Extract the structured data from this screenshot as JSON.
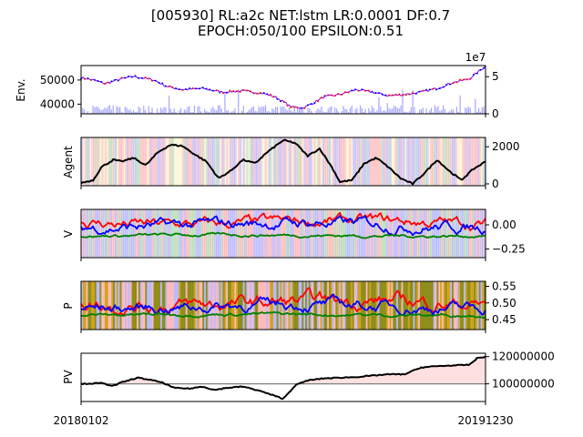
{
  "title": {
    "line1": "[005930] RL:a2c NET:lstm LR:0.0001 DF:0.7",
    "line2": "EPOCH:050/100 EPSILON:0.51"
  },
  "chart_data": [
    {
      "type": "line",
      "panel": "env",
      "ylabel": "Env.",
      "x_range": [
        "20180102",
        "20191230"
      ],
      "left_ticks": [
        "40000",
        "50000"
      ],
      "right_ticks": [
        "0",
        "5"
      ],
      "right_offset_label": "1e7",
      "ylim": [
        36000,
        56000
      ],
      "ylim_volume": [
        0,
        65000000
      ],
      "series": [
        {
          "name": "",
          "color": "#8000ff",
          "desc": "close price",
          "keyframes": [
            [
              0,
              51000
            ],
            [
              0.03,
              50000
            ],
            [
              0.06,
              48500
            ],
            [
              0.1,
              50500
            ],
            [
              0.13,
              51500
            ],
            [
              0.18,
              50000
            ],
            [
              0.21,
              47500
            ],
            [
              0.25,
              46000
            ],
            [
              0.3,
              46500
            ],
            [
              0.35,
              45000
            ],
            [
              0.4,
              45500
            ],
            [
              0.45,
              44500
            ],
            [
              0.48,
              43000
            ],
            [
              0.5,
              41000
            ],
            [
              0.52,
              38800
            ],
            [
              0.55,
              38500
            ],
            [
              0.58,
              41000
            ],
            [
              0.6,
              43000
            ],
            [
              0.64,
              44000
            ],
            [
              0.68,
              46000
            ],
            [
              0.72,
              45000
            ],
            [
              0.76,
              43500
            ],
            [
              0.8,
              44000
            ],
            [
              0.84,
              45000
            ],
            [
              0.88,
              46500
            ],
            [
              0.92,
              49000
            ],
            [
              0.96,
              50500
            ],
            [
              1.0,
              55800
            ]
          ]
        },
        {
          "name": "",
          "color": "#0000ff",
          "desc": "volume bars",
          "scale": 1
        }
      ]
    },
    {
      "type": "line",
      "panel": "agent",
      "ylabel": "Agent",
      "right_ticks": [
        "0",
        "2000"
      ],
      "ylim": [
        -100,
        2500
      ],
      "series": [
        {
          "name": "",
          "color": "#000000",
          "keyframes": [
            [
              0,
              50
            ],
            [
              0.03,
              200
            ],
            [
              0.05,
              900
            ],
            [
              0.08,
              1300
            ],
            [
              0.1,
              1200
            ],
            [
              0.13,
              1400
            ],
            [
              0.16,
              1000
            ],
            [
              0.19,
              1700
            ],
            [
              0.22,
              2100
            ],
            [
              0.25,
              2050
            ],
            [
              0.28,
              1600
            ],
            [
              0.31,
              1200
            ],
            [
              0.34,
              300
            ],
            [
              0.37,
              700
            ],
            [
              0.4,
              1300
            ],
            [
              0.43,
              1100
            ],
            [
              0.46,
              1700
            ],
            [
              0.5,
              2350
            ],
            [
              0.53,
              2200
            ],
            [
              0.56,
              1500
            ],
            [
              0.59,
              1900
            ],
            [
              0.62,
              900
            ],
            [
              0.64,
              100
            ],
            [
              0.67,
              200
            ],
            [
              0.7,
              1100
            ],
            [
              0.73,
              1400
            ],
            [
              0.76,
              900
            ],
            [
              0.79,
              300
            ],
            [
              0.82,
              0
            ],
            [
              0.85,
              600
            ],
            [
              0.88,
              1300
            ],
            [
              0.91,
              700
            ],
            [
              0.94,
              200
            ],
            [
              0.97,
              800
            ],
            [
              1.0,
              1200
            ]
          ]
        }
      ]
    },
    {
      "type": "line",
      "panel": "value",
      "ylabel": "V",
      "right_ticks": [
        "−0.25",
        "0.00"
      ],
      "right_tick_values": [
        -0.25,
        0.0
      ],
      "ylim": [
        -0.34,
        0.16
      ],
      "series": [
        {
          "name": "",
          "color": "#ff0000",
          "base": 0.02,
          "amp": 0.07
        },
        {
          "name": "",
          "color": "#0000ff",
          "base": 0.0,
          "amp": 0.07
        },
        {
          "name": "",
          "color": "#008000",
          "base": -0.11,
          "amp": 0.02
        }
      ]
    },
    {
      "type": "line",
      "panel": "policy",
      "ylabel": "P",
      "right_ticks": [
        "0.45",
        "0.50",
        "0.55"
      ],
      "right_tick_values": [
        0.45,
        0.5,
        0.55
      ],
      "ylim": [
        0.42,
        0.565
      ],
      "series": [
        {
          "name": "",
          "color": "#ff0000",
          "base": 0.5,
          "amp": 0.025
        },
        {
          "name": "",
          "color": "#0000ff",
          "base": 0.49,
          "amp": 0.02
        },
        {
          "name": "",
          "color": "#008000",
          "base": 0.465,
          "amp": 0.006
        }
      ]
    },
    {
      "type": "area",
      "panel": "pv",
      "ylabel": "PV",
      "right_ticks": [
        "100000000",
        "120000000"
      ],
      "right_tick_values": [
        100000000,
        120000000
      ],
      "ylim": [
        87000000,
        122500000
      ],
      "baseline": 100000000,
      "x_tick_labels": [
        "20180102",
        "20191230"
      ],
      "series": [
        {
          "name": "",
          "color": "#000000",
          "keyframes": [
            [
              0,
              100000000
            ],
            [
              0.05,
              100500000
            ],
            [
              0.08,
              98500000
            ],
            [
              0.1,
              101000000
            ],
            [
              0.14,
              104500000
            ],
            [
              0.17,
              103000000
            ],
            [
              0.2,
              101000000
            ],
            [
              0.23,
              97000000
            ],
            [
              0.27,
              96500000
            ],
            [
              0.3,
              98000000
            ],
            [
              0.33,
              95500000
            ],
            [
              0.36,
              97000000
            ],
            [
              0.4,
              98000000
            ],
            [
              0.44,
              95000000
            ],
            [
              0.47,
              92000000
            ],
            [
              0.5,
              89000000
            ],
            [
              0.53,
              99000000
            ],
            [
              0.56,
              102500000
            ],
            [
              0.6,
              104000000
            ],
            [
              0.64,
              104500000
            ],
            [
              0.68,
              105000000
            ],
            [
              0.72,
              106000000
            ],
            [
              0.76,
              107000000
            ],
            [
              0.8,
              107000000
            ],
            [
              0.84,
              112000000
            ],
            [
              0.88,
              113000000
            ],
            [
              0.92,
              113500000
            ],
            [
              0.96,
              114000000
            ],
            [
              0.98,
              119000000
            ],
            [
              1.0,
              120000000
            ]
          ]
        }
      ]
    }
  ],
  "colors": {
    "buy": "#ff0000",
    "sell": "#0000ff",
    "hold": "#008000",
    "explore": "#ffd54d",
    "policy_bg": "#808000",
    "profit_fill": "#ffcccc",
    "baseline": "#808080"
  }
}
